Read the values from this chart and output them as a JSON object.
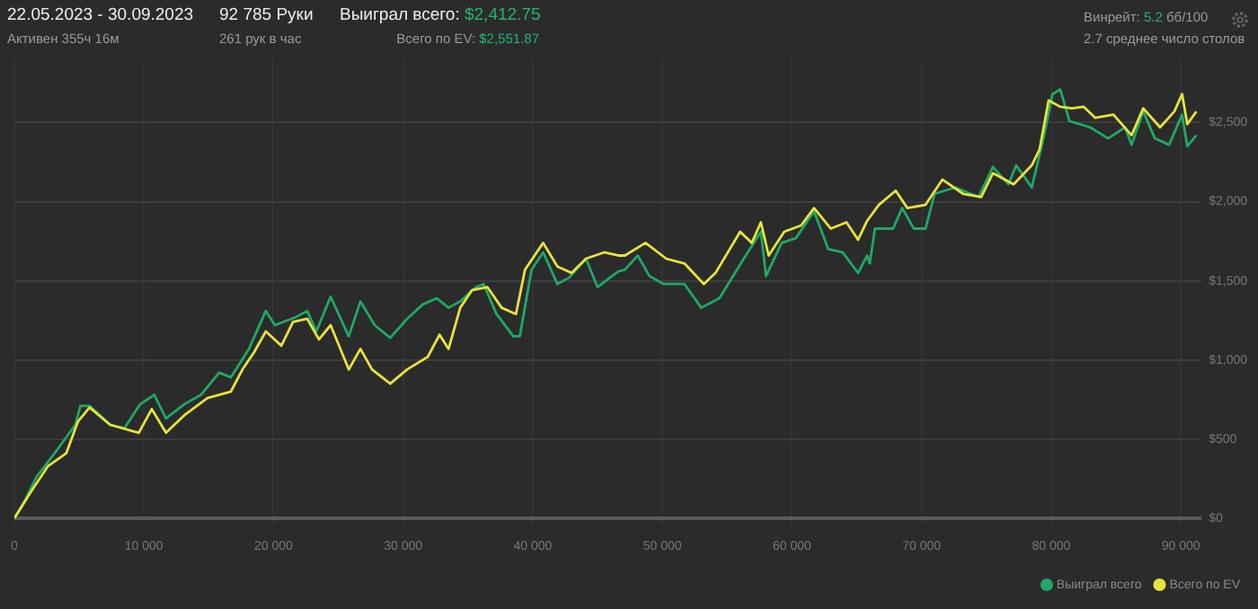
{
  "chart_data": {
    "type": "line",
    "title": "22.05.2023 - 30.09.2023",
    "subtitle": "Активен 355ч 16м",
    "annotations": [
      "92 785 Руки",
      "261 рук в час",
      "Выиграл всего: $2,412.75",
      "Всего по EV: $2,551.87",
      "Винрейт: 5.2 бб/100",
      "2.7 среднее число столов"
    ],
    "series": [
      {
        "name": "Выиграл всего",
        "color": "#1fa866",
        "x": [
          0,
          800,
          1700,
          3100,
          4700,
          5100,
          5800,
          7400,
          8500,
          9700,
          10800,
          11700,
          13100,
          14400,
          15800,
          16700,
          18100,
          19400,
          20100,
          21700,
          22600,
          23300,
          24400,
          25800,
          26700,
          27800,
          29000,
          30300,
          31500,
          32600,
          33500,
          34400,
          35600,
          36200,
          37200,
          38500,
          39000,
          39900,
          40800,
          41900,
          42800,
          44100,
          45000,
          46600,
          47100,
          48100,
          49000,
          50100,
          51700,
          53000,
          54400,
          56200,
          57600,
          58000,
          59200,
          60300,
          61700,
          62800,
          63900,
          65100,
          65800,
          66000,
          66400,
          67800,
          68500,
          69400,
          70300,
          71000,
          72600,
          74400,
          75500,
          76700,
          77300,
          78500,
          79400,
          80100,
          80700,
          81400,
          83000,
          84400,
          85700,
          86200,
          87100,
          88000,
          89100,
          90100,
          90500,
          91200
        ],
        "values": [
          0,
          110,
          260,
          410,
          590,
          710,
          710,
          590,
          570,
          720,
          780,
          630,
          720,
          780,
          920,
          890,
          1070,
          1310,
          1220,
          1270,
          1310,
          1180,
          1400,
          1150,
          1370,
          1220,
          1140,
          1260,
          1350,
          1390,
          1330,
          1370,
          1460,
          1480,
          1290,
          1150,
          1150,
          1570,
          1680,
          1480,
          1520,
          1640,
          1460,
          1560,
          1570,
          1660,
          1530,
          1480,
          1480,
          1330,
          1390,
          1630,
          1810,
          1530,
          1740,
          1770,
          1940,
          1700,
          1680,
          1550,
          1660,
          1610,
          1830,
          1830,
          1960,
          1830,
          1830,
          2050,
          2090,
          2030,
          2220,
          2110,
          2230,
          2090,
          2400,
          2680,
          2710,
          2510,
          2470,
          2400,
          2470,
          2360,
          2570,
          2400,
          2360,
          2550,
          2350,
          2420
        ]
      },
      {
        "name": "Всего по EV",
        "color": "#e6e33c",
        "x": [
          0,
          1300,
          2600,
          4000,
          4900,
          5800,
          7400,
          9600,
          10600,
          11700,
          13100,
          14900,
          16700,
          17600,
          18500,
          19400,
          20600,
          21500,
          22600,
          23500,
          24400,
          25800,
          26700,
          27600,
          29000,
          30300,
          31900,
          32800,
          33500,
          34400,
          35300,
          36500,
          37600,
          38700,
          39400,
          40800,
          41900,
          43000,
          44100,
          45500,
          46600,
          47100,
          48700,
          50300,
          51700,
          53200,
          54100,
          56000,
          56900,
          57600,
          58200,
          59400,
          60700,
          61700,
          63000,
          64200,
          65100,
          65800,
          66700,
          68000,
          68900,
          70300,
          71600,
          73200,
          74600,
          75500,
          77100,
          78500,
          79100,
          79800,
          80700,
          81600,
          82500,
          83400,
          84800,
          86200,
          87100,
          88400,
          89500,
          90100,
          90500,
          91200
        ],
        "values": [
          0,
          170,
          330,
          410,
          610,
          700,
          590,
          540,
          690,
          540,
          650,
          760,
          800,
          940,
          1050,
          1180,
          1090,
          1240,
          1260,
          1130,
          1220,
          940,
          1070,
          940,
          850,
          940,
          1020,
          1160,
          1070,
          1330,
          1440,
          1460,
          1330,
          1290,
          1570,
          1740,
          1590,
          1550,
          1640,
          1680,
          1660,
          1660,
          1740,
          1640,
          1610,
          1480,
          1550,
          1810,
          1740,
          1870,
          1660,
          1810,
          1850,
          1960,
          1830,
          1870,
          1760,
          1880,
          1980,
          2070,
          1960,
          1980,
          2140,
          2050,
          2030,
          2180,
          2110,
          2230,
          2330,
          2640,
          2600,
          2590,
          2600,
          2530,
          2550,
          2420,
          2590,
          2470,
          2570,
          2680,
          2490,
          2570
        ]
      }
    ],
    "xlim": [
      0,
      91600
    ],
    "xticks": [
      0,
      {
        "value": 10000,
        "label": "10 000"
      },
      {
        "value": 20000,
        "label": "20 000"
      },
      {
        "value": 30000,
        "label": "30 000"
      },
      {
        "value": 40000,
        "label": "40 000"
      },
      {
        "value": 50000,
        "label": "50 000"
      },
      {
        "value": 60000,
        "label": "60 000"
      },
      {
        "value": 70000,
        "label": "70 000"
      },
      {
        "value": 80000,
        "label": "80 000"
      },
      {
        "value": 90000,
        "label": "90 000"
      }
    ],
    "ylim": [
      -40,
      2900
    ],
    "yticks": [
      {
        "value": 0,
        "label": "$0"
      },
      {
        "value": 500,
        "label": "$500"
      },
      {
        "value": 1000,
        "label": "$1,000"
      },
      {
        "value": 1500,
        "label": "$1,500"
      },
      {
        "value": 2000,
        "label": "$2,000"
      },
      {
        "value": 2500,
        "label": "$2,500"
      }
    ],
    "grid": true,
    "legend": "bottom right",
    "marker": "none",
    "line_style": "solid"
  }
}
